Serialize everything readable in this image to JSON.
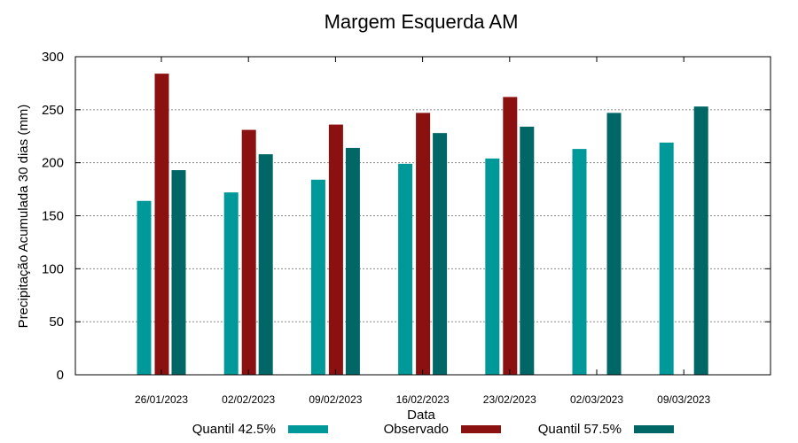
{
  "chart_data": {
    "type": "bar",
    "title": "Margem Esquerda AM",
    "xlabel": "Data",
    "ylabel": "Precipitação Acumulada 30 dias (mm)",
    "ylim": [
      0,
      300
    ],
    "yticks": [
      0,
      50,
      100,
      150,
      200,
      250,
      300
    ],
    "grid": true,
    "legend_position": "bottom",
    "categories": [
      "26/01/2023",
      "02/02/2023",
      "09/02/2023",
      "16/02/2023",
      "23/02/2023",
      "02/03/2023",
      "09/03/2023"
    ],
    "series": [
      {
        "name": "Quantil 42.5%",
        "color": "#009999",
        "values": [
          164,
          172,
          184,
          199,
          204,
          213,
          219
        ]
      },
      {
        "name": "Observado",
        "color": "#8b1010",
        "values": [
          284,
          231,
          236,
          247,
          262,
          null,
          null
        ]
      },
      {
        "name": "Quantil 57.5%",
        "color": "#006666",
        "values": [
          193,
          208,
          214,
          228,
          234,
          247,
          253
        ]
      }
    ]
  }
}
